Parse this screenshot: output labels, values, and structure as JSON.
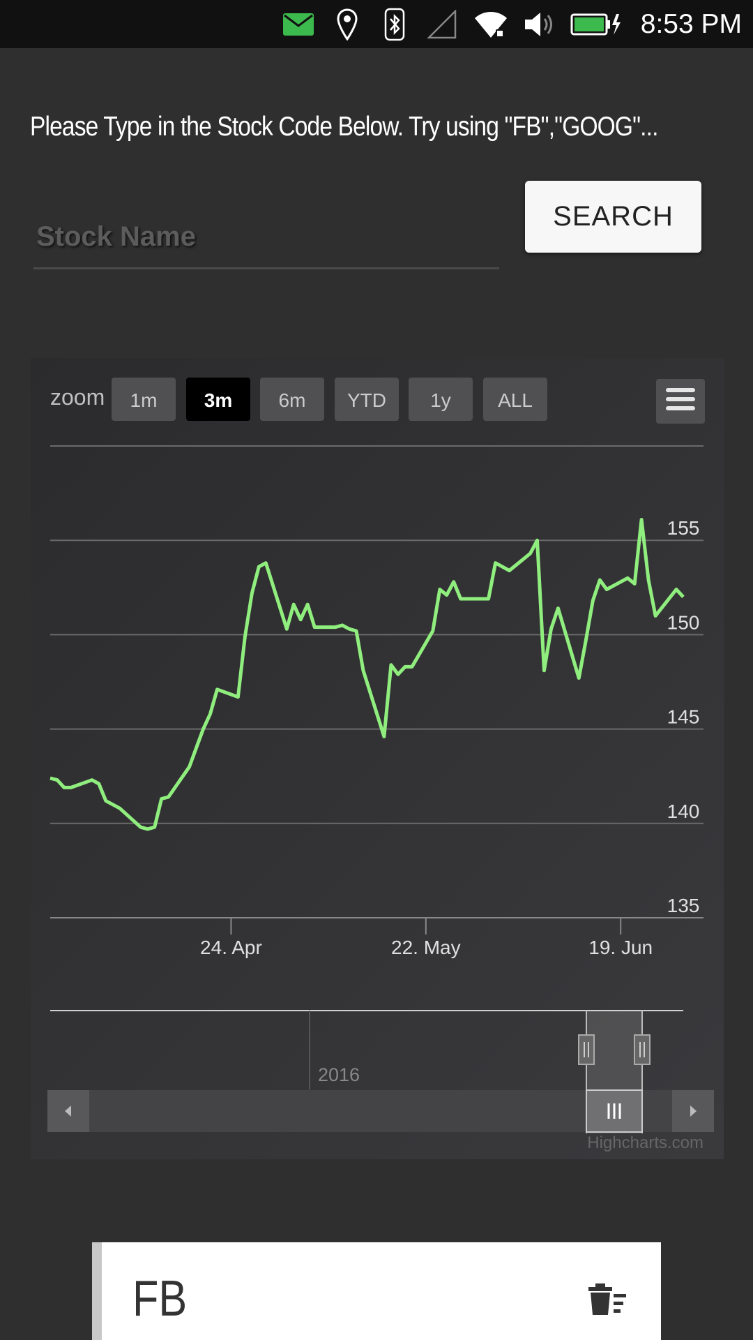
{
  "status_bar": {
    "time": "8:53 PM",
    "icons": [
      "mail-icon",
      "location-icon",
      "bluetooth-icon",
      "signal-icon",
      "wifi-icon",
      "volume-icon",
      "battery-charging-icon"
    ],
    "mail_color": "#3dba4e",
    "battery_color": "#3dba4e"
  },
  "instruction": "Please Type in the Stock Code Below. Try using \"FB\",\"GOOG\"...",
  "search": {
    "placeholder": "Stock Name",
    "value": "",
    "button_label": "SEARCH"
  },
  "chart": {
    "zoom_label": "zoom",
    "range_buttons": [
      "1m",
      "3m",
      "6m",
      "YTD",
      "1y",
      "ALL"
    ],
    "selected_range": "3m",
    "menu_icon": "hamburger-menu-icon",
    "navigator_year": "2016",
    "credits": "Highcharts.com",
    "line_color": "#90ee7e"
  },
  "chart_data": {
    "type": "line",
    "xlabel": "",
    "ylabel": "",
    "ylim": [
      135,
      160
    ],
    "yticks": [
      "135",
      "140",
      "145",
      "150",
      "155"
    ],
    "xticks": [
      "24. Apr",
      "22. May",
      "19. Jun"
    ],
    "grid": true,
    "x": [
      "2016-03-29",
      "2016-03-30",
      "2016-03-31",
      "2016-04-01",
      "2016-04-04",
      "2016-04-05",
      "2016-04-06",
      "2016-04-07",
      "2016-04-08",
      "2016-04-11",
      "2016-04-12",
      "2016-04-13",
      "2016-04-14",
      "2016-04-15",
      "2016-04-18",
      "2016-04-19",
      "2016-04-20",
      "2016-04-21",
      "2016-04-22",
      "2016-04-25",
      "2016-04-26",
      "2016-04-27",
      "2016-04-28",
      "2016-04-29",
      "2016-05-02",
      "2016-05-03",
      "2016-05-04",
      "2016-05-05",
      "2016-05-06",
      "2016-05-09",
      "2016-05-10",
      "2016-05-11",
      "2016-05-12",
      "2016-05-13",
      "2016-05-16",
      "2016-05-17",
      "2016-05-18",
      "2016-05-19",
      "2016-05-20",
      "2016-05-23",
      "2016-05-24",
      "2016-05-25",
      "2016-05-26",
      "2016-05-27",
      "2016-05-31",
      "2016-06-01",
      "2016-06-02",
      "2016-06-03",
      "2016-06-06",
      "2016-06-07",
      "2016-06-08",
      "2016-06-09",
      "2016-06-10",
      "2016-06-13",
      "2016-06-14",
      "2016-06-15",
      "2016-06-16",
      "2016-06-17",
      "2016-06-20",
      "2016-06-21",
      "2016-06-22",
      "2016-06-23",
      "2016-06-24",
      "2016-06-27",
      "2016-06-28"
    ],
    "series": [
      {
        "values": [
          142.4,
          142.3,
          141.9,
          141.9,
          142.3,
          142.1,
          141.2,
          141.0,
          140.8,
          139.8,
          139.7,
          139.8,
          141.3,
          141.4,
          143.0,
          144.0,
          145.0,
          145.8,
          147.1,
          146.7,
          149.9,
          152.2,
          153.6,
          153.8,
          150.3,
          151.6,
          150.8,
          151.6,
          150.4,
          150.4,
          150.5,
          150.3,
          150.2,
          148.1,
          144.6,
          148.4,
          147.9,
          148.3,
          148.3,
          150.2,
          152.4,
          152.1,
          152.8,
          151.9,
          151.9,
          153.8,
          153.6,
          153.4,
          154.3,
          155.0,
          148.1,
          150.3,
          151.4,
          147.7,
          149.7,
          151.8,
          152.9,
          152.4,
          153.0,
          152.7,
          156.1,
          152.9,
          151.0,
          152.4,
          152.0
        ]
      }
    ]
  },
  "stock_card": {
    "symbol": "FB",
    "delete_icon": "delete-sweep-icon"
  }
}
